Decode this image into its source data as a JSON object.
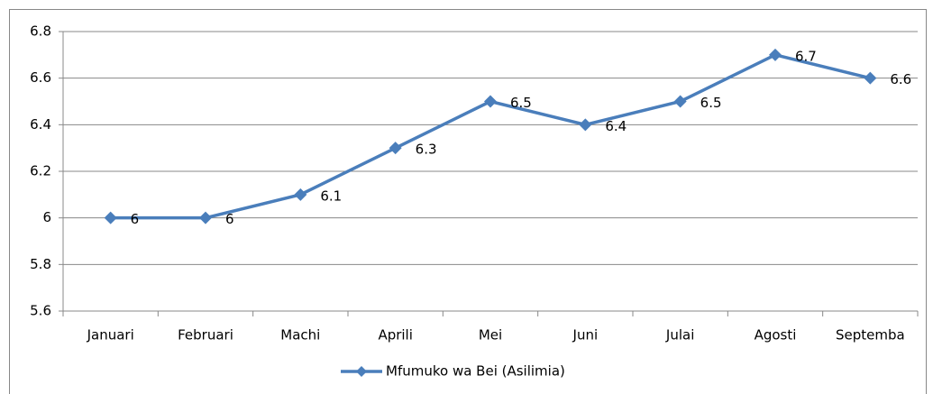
{
  "chart_data": {
    "type": "line",
    "categories": [
      "Januari",
      "Februari",
      "Machi",
      "Aprili",
      "Mei",
      "Juni",
      "Julai",
      "Agosti",
      "Septemba"
    ],
    "series": [
      {
        "name": "Mfumuko wa Bei (Asilimia)",
        "color": "#4a7ebb",
        "values": [
          6,
          6,
          6.1,
          6.3,
          6.5,
          6.4,
          6.5,
          6.7,
          6.6
        ]
      }
    ],
    "ylim": [
      5.6,
      6.8
    ],
    "yticks": [
      5.6,
      5.8,
      6,
      6.2,
      6.4,
      6.6,
      6.8
    ],
    "grid": true,
    "legend": "bottom"
  }
}
